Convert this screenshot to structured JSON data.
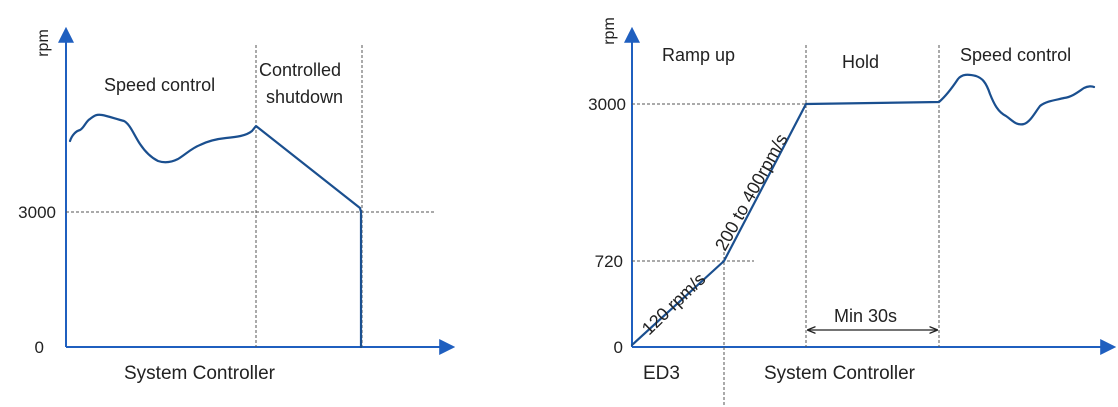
{
  "colors": {
    "axis": "#1f5fbf",
    "curve": "#1a4f8f",
    "guide": "#555555",
    "text": "#222222"
  },
  "left_panel": {
    "y_unit": "rpm",
    "tick_3000": "3000",
    "tick_0": "0",
    "region_speed_control": "Speed control",
    "region_shutdown_line1": "Controlled",
    "region_shutdown_line2": "shutdown",
    "x_label": "System  Controller"
  },
  "right_panel": {
    "y_unit": "rpm",
    "tick_3000": "3000",
    "tick_720": "720",
    "tick_0": "0",
    "region_ramp_up": "Ramp up",
    "region_hold": "Hold",
    "region_speed_control": "Speed control",
    "slope_low": "120 rpm/s",
    "slope_high": "200 to 400rpm/s",
    "min_hold": "Min 30s",
    "x_label_ed3": "ED3",
    "x_label_controller": "System Controller"
  }
}
